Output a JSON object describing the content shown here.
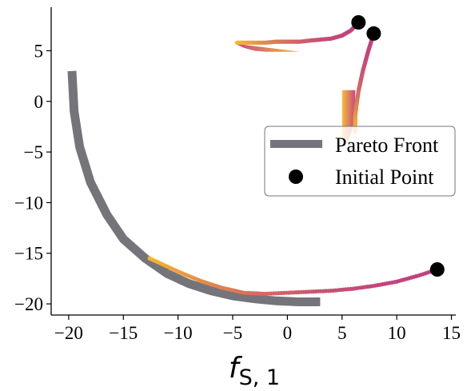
{
  "chart_data": {
    "type": "scatter",
    "xlabel": "f_{S,1}",
    "ylabel": "",
    "xlim": [
      -21.6,
      15.4
    ],
    "ylim": [
      -21.1,
      9.3
    ],
    "x_ticks": [
      -20,
      -15,
      -10,
      -5,
      0,
      5,
      10,
      15
    ],
    "y_ticks": [
      5,
      0,
      -5,
      -10,
      -15,
      -20
    ],
    "grid": false,
    "legend_position": "center-right",
    "colors": {
      "pareto": "#75747b",
      "traj_start": "#c2407f",
      "traj_end": "#f8b82a",
      "initial": "#000000"
    },
    "series": [
      {
        "name": "Pareto Front",
        "kind": "curve",
        "points": [
          [
            -19.7,
            3.0
          ],
          [
            -19.5,
            -1.0
          ],
          [
            -19.0,
            -4.5
          ],
          [
            -18.0,
            -8.0
          ],
          [
            -16.5,
            -11.2
          ],
          [
            -15.0,
            -13.6
          ],
          [
            -13.0,
            -15.5
          ],
          [
            -11.0,
            -17.0
          ],
          [
            -9.0,
            -18.0
          ],
          [
            -7.0,
            -18.7
          ],
          [
            -5.0,
            -19.2
          ],
          [
            -3.0,
            -19.5
          ],
          [
            -1.0,
            -19.7
          ],
          [
            1.0,
            -19.8
          ],
          [
            3.0,
            -19.8
          ]
        ]
      },
      {
        "name": "Initial Point",
        "kind": "points",
        "points": [
          [
            6.5,
            7.8
          ],
          [
            7.9,
            6.7
          ],
          [
            13.7,
            -16.6
          ]
        ]
      }
    ],
    "trajectories": [
      {
        "start": [
          6.5,
          7.8
        ],
        "end": [
          1.2,
          5.0
        ],
        "path": [
          [
            6.5,
            7.8
          ],
          [
            5.8,
            7.0
          ],
          [
            5.0,
            6.5
          ],
          [
            4.0,
            6.2
          ],
          [
            3.0,
            6.1
          ],
          [
            2.0,
            6.0
          ],
          [
            1.2,
            5.9
          ],
          [
            0.0,
            5.9
          ],
          [
            -1.0,
            5.9
          ],
          [
            -2.0,
            5.8
          ],
          [
            -3.0,
            5.8
          ],
          [
            -4.0,
            5.8
          ],
          [
            -4.6,
            5.8
          ]
        ],
        "band": [
          [
            -4.8,
            5.7
          ],
          [
            -4.0,
            5.3
          ],
          [
            -3.0,
            5.0
          ],
          [
            -2.0,
            4.9
          ],
          [
            -1.0,
            4.9
          ],
          [
            0.0,
            4.9
          ],
          [
            1.2,
            4.9
          ]
        ]
      },
      {
        "start": [
          7.9,
          6.7
        ],
        "end": [
          5.2,
          -4.6
        ],
        "path": [
          [
            7.9,
            6.7
          ],
          [
            7.4,
            5.0
          ],
          [
            6.9,
            3.0
          ],
          [
            6.5,
            1.0
          ],
          [
            6.3,
            -0.5
          ],
          [
            6.2,
            -1.5
          ],
          [
            6.2,
            -3.0
          ]
        ],
        "band": [
          [
            6.2,
            1.1
          ],
          [
            6.2,
            -1.0
          ],
          [
            6.0,
            -2.5
          ],
          [
            5.6,
            -3.8
          ],
          [
            5.2,
            -4.6
          ],
          [
            5.0,
            -3.0
          ],
          [
            5.0,
            -1.0
          ],
          [
            5.0,
            1.1
          ]
        ]
      },
      {
        "start": [
          13.7,
          -16.6
        ],
        "end": [
          -12.6,
          -15.5
        ],
        "path": [
          [
            13.7,
            -16.6
          ],
          [
            12.0,
            -17.2
          ],
          [
            10.0,
            -17.8
          ],
          [
            8.0,
            -18.2
          ],
          [
            6.0,
            -18.5
          ],
          [
            4.0,
            -18.7
          ],
          [
            2.0,
            -18.8
          ],
          [
            0.0,
            -18.9
          ],
          [
            -2.0,
            -19.0
          ],
          [
            -4.0,
            -18.9
          ],
          [
            -6.0,
            -18.4
          ],
          [
            -8.0,
            -17.7
          ],
          [
            -10.0,
            -16.8
          ],
          [
            -12.6,
            -15.5
          ]
        ]
      }
    ]
  },
  "legend": {
    "pareto_label": "Pareto Front",
    "initial_label": "Initial Point"
  },
  "axis_label_parts": {
    "main": "f",
    "sub": "S, 1"
  }
}
